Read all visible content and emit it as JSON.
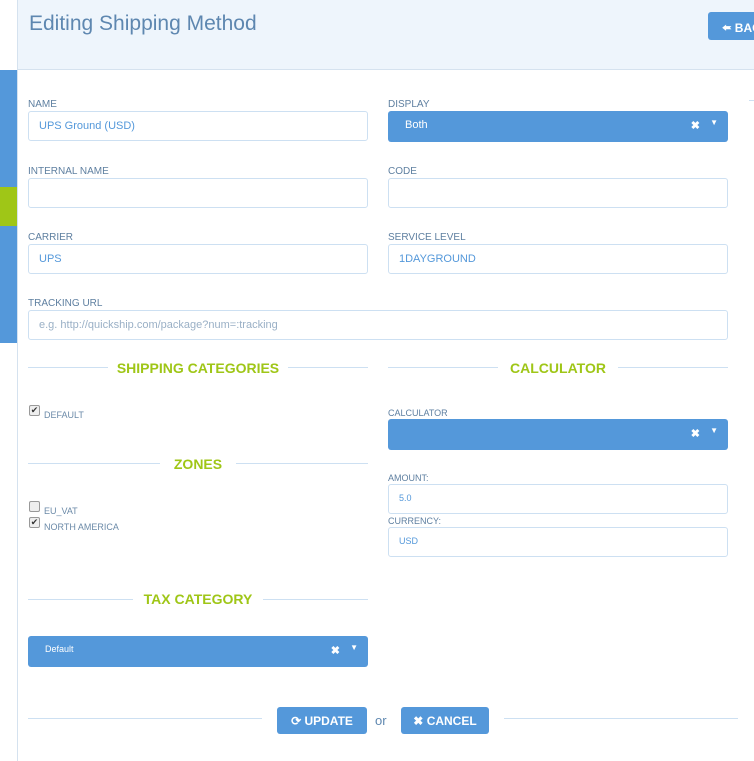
{
  "header": {
    "title": "Editing Shipping Method",
    "back_label": "BACK"
  },
  "form": {
    "name": {
      "label": "NAME",
      "value": "UPS Ground (USD)"
    },
    "display": {
      "label": "DISPLAY",
      "value": "Both"
    },
    "internal_name": {
      "label": "INTERNAL NAME",
      "value": ""
    },
    "code": {
      "label": "CODE",
      "value": ""
    },
    "carrier": {
      "label": "CARRIER",
      "value": "UPS"
    },
    "service_level": {
      "label": "SERVICE LEVEL",
      "value": "1DAYGROUND"
    },
    "tracking_url": {
      "label": "TRACKING URL",
      "placeholder": "e.g. http://quickship.com/package?num=:tracking"
    }
  },
  "shipping_categories": {
    "title": "SHIPPING CATEGORIES",
    "items": [
      {
        "label": "DEFAULT",
        "checked": true
      }
    ]
  },
  "zones": {
    "title": "ZONES",
    "items": [
      {
        "label": "EU_VAT",
        "checked": false
      },
      {
        "label": "NORTH AMERICA",
        "checked": true
      }
    ]
  },
  "tax_category": {
    "title": "TAX CATEGORY",
    "value": "Default"
  },
  "calculator": {
    "title": "CALCULATOR",
    "label": "CALCULATOR",
    "value": "",
    "amount_label": "AMOUNT:",
    "amount": "5.0",
    "currency_label": "CURRENCY:",
    "currency": "USD"
  },
  "actions": {
    "update": "UPDATE",
    "or": "or",
    "cancel": "CANCEL"
  },
  "colors": {
    "accent": "#5498da",
    "section": "#9fc617"
  }
}
